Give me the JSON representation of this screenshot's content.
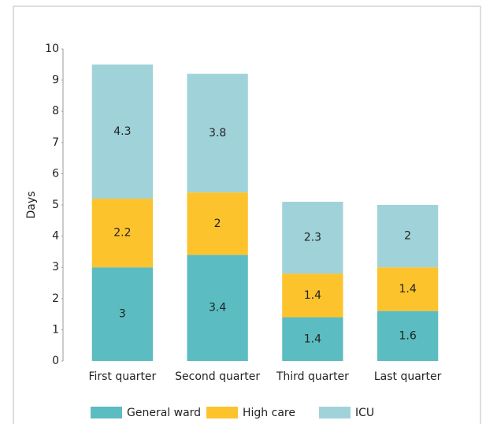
{
  "chart_data": {
    "type": "stacked_bar",
    "y_label": "Days",
    "categories": [
      "First quarter",
      "Second quarter",
      "Third quarter",
      "Last quarter"
    ],
    "series": [
      {
        "name": "General ward",
        "color": "#5bbcc1",
        "values": [
          3,
          3.4,
          1.4,
          1.6
        ]
      },
      {
        "name": "High care",
        "color": "#fcc32c",
        "values": [
          2.2,
          2,
          1.4,
          1.4
        ]
      },
      {
        "name": "ICU",
        "color": "#a0d3d9",
        "values": [
          4.3,
          3.8,
          2.3,
          2
        ]
      }
    ],
    "ylim": [
      0,
      10
    ],
    "yticks": [
      0,
      1,
      2,
      3,
      4,
      5,
      6,
      7,
      8,
      9,
      10
    ],
    "grid": false,
    "legend": "bottom"
  }
}
